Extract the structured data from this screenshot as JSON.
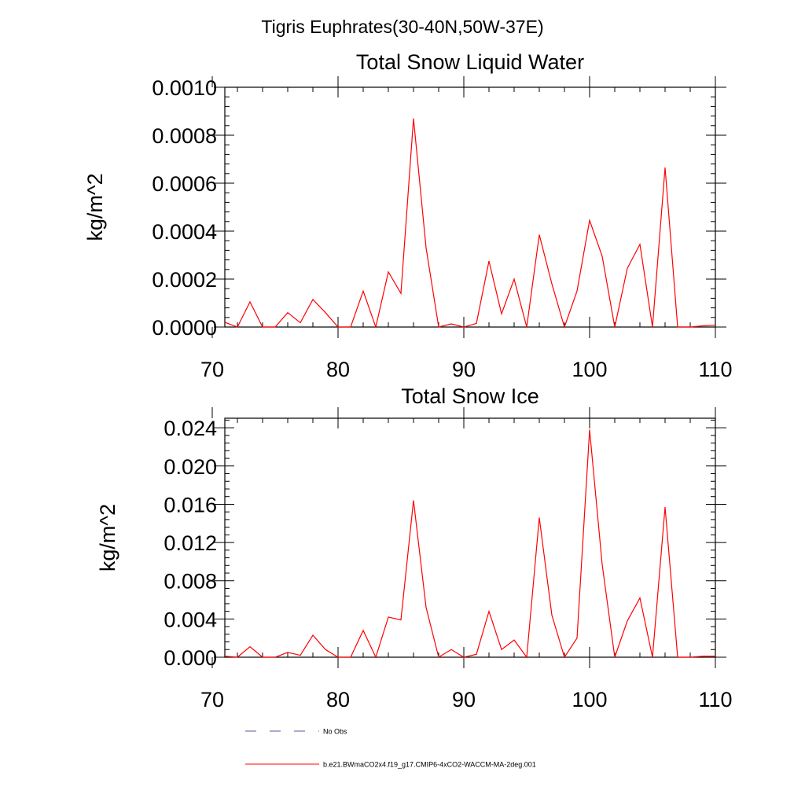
{
  "page": {
    "title": "Tigris Euphrates(30-40N,50W-37E)"
  },
  "legend": {
    "items": [
      {
        "label": "No Obs",
        "color": "#5a5a9a",
        "dash": true
      },
      {
        "label": "b.e21.BWmaCO2x4.f19_g17.CMIP6-4xCO2-WACCM-MA-2deg.001",
        "color": "#ff0000",
        "dash": false
      }
    ]
  },
  "chart_data": [
    {
      "type": "line",
      "title": "Total Snow Liquid Water",
      "xlabel": "",
      "ylabel": "kg/m^2",
      "xlim": [
        71,
        110
      ],
      "ylim": [
        0,
        0.001
      ],
      "xticks": [
        70,
        80,
        90,
        100,
        110
      ],
      "xtick_labels": [
        "70",
        "80",
        "90",
        "100",
        "110"
      ],
      "yticks": [
        0,
        0.0002,
        0.0004,
        0.0006,
        0.0008,
        0.001
      ],
      "ytick_labels": [
        "0.0000",
        "0.0002",
        "0.0004",
        "0.0006",
        "0.0008",
        "0.0010"
      ],
      "x": [
        71,
        72,
        73,
        74,
        75,
        76,
        77,
        78,
        79,
        80,
        81,
        82,
        83,
        84,
        85,
        86,
        87,
        88,
        89,
        90,
        91,
        92,
        93,
        94,
        95,
        96,
        97,
        98,
        99,
        100,
        101,
        102,
        103,
        104,
        105,
        106,
        107,
        108,
        109,
        110
      ],
      "series": [
        {
          "name": "b.e21.BWmaCO2x4.f19_g17.CMIP6-4xCO2-WACCM-MA-2deg.001",
          "color": "#ff0000",
          "values": [
            2e-05,
            0.0,
            0.000105,
            0.0,
            0.0,
            6e-05,
            1.8e-05,
            0.000115,
            6e-05,
            0.0,
            0.0,
            0.00015,
            0.0,
            0.00023,
            0.00014,
            0.00087,
            0.00033,
            0.0,
            1.3e-05,
            0.0,
            1.5e-05,
            0.000275,
            5.5e-05,
            0.0002,
            0.0,
            0.000385,
            0.00018,
            0.0,
            0.00015,
            0.000445,
            0.000295,
            0.0,
            0.000245,
            0.000345,
            0.0,
            0.000665,
            0.0,
            0.0,
            5e-06,
            8e-06
          ]
        }
      ],
      "grid": false
    },
    {
      "type": "line",
      "title": "Total Snow Ice",
      "xlabel": "",
      "ylabel": "kg/m^2",
      "xlim": [
        71,
        110
      ],
      "ylim": [
        0,
        0.025
      ],
      "xticks": [
        70,
        80,
        90,
        100,
        110
      ],
      "xtick_labels": [
        "70",
        "80",
        "90",
        "100",
        "110"
      ],
      "yticks": [
        0,
        0.004,
        0.008,
        0.012,
        0.016,
        0.02,
        0.024
      ],
      "ytick_labels": [
        "0.000",
        "0.004",
        "0.008",
        "0.012",
        "0.016",
        "0.020",
        "0.024"
      ],
      "x": [
        71,
        72,
        73,
        74,
        75,
        76,
        77,
        78,
        79,
        80,
        81,
        82,
        83,
        84,
        85,
        86,
        87,
        88,
        89,
        90,
        91,
        92,
        93,
        94,
        95,
        96,
        97,
        98,
        99,
        100,
        101,
        102,
        103,
        104,
        105,
        106,
        107,
        108,
        109,
        110
      ],
      "series": [
        {
          "name": "b.e21.BWmaCO2x4.f19_g17.CMIP6-4xCO2-WACCM-MA-2deg.001",
          "color": "#ff0000",
          "values": [
            0.0001,
            0.0,
            0.0011,
            0.0,
            0.0,
            0.0005,
            0.0002,
            0.0023,
            0.0008,
            0.0,
            0.0,
            0.0028,
            0.0,
            0.0042,
            0.0039,
            0.0164,
            0.0052,
            0.0,
            0.0008,
            0.0,
            0.0003,
            0.0048,
            0.0008,
            0.0018,
            0.0,
            0.0146,
            0.0044,
            0.0,
            0.002,
            0.0238,
            0.0097,
            0.0,
            0.0038,
            0.0062,
            0.0,
            0.0157,
            0.0,
            0.0,
            0.0001,
            0.0001
          ]
        }
      ],
      "grid": false
    }
  ]
}
